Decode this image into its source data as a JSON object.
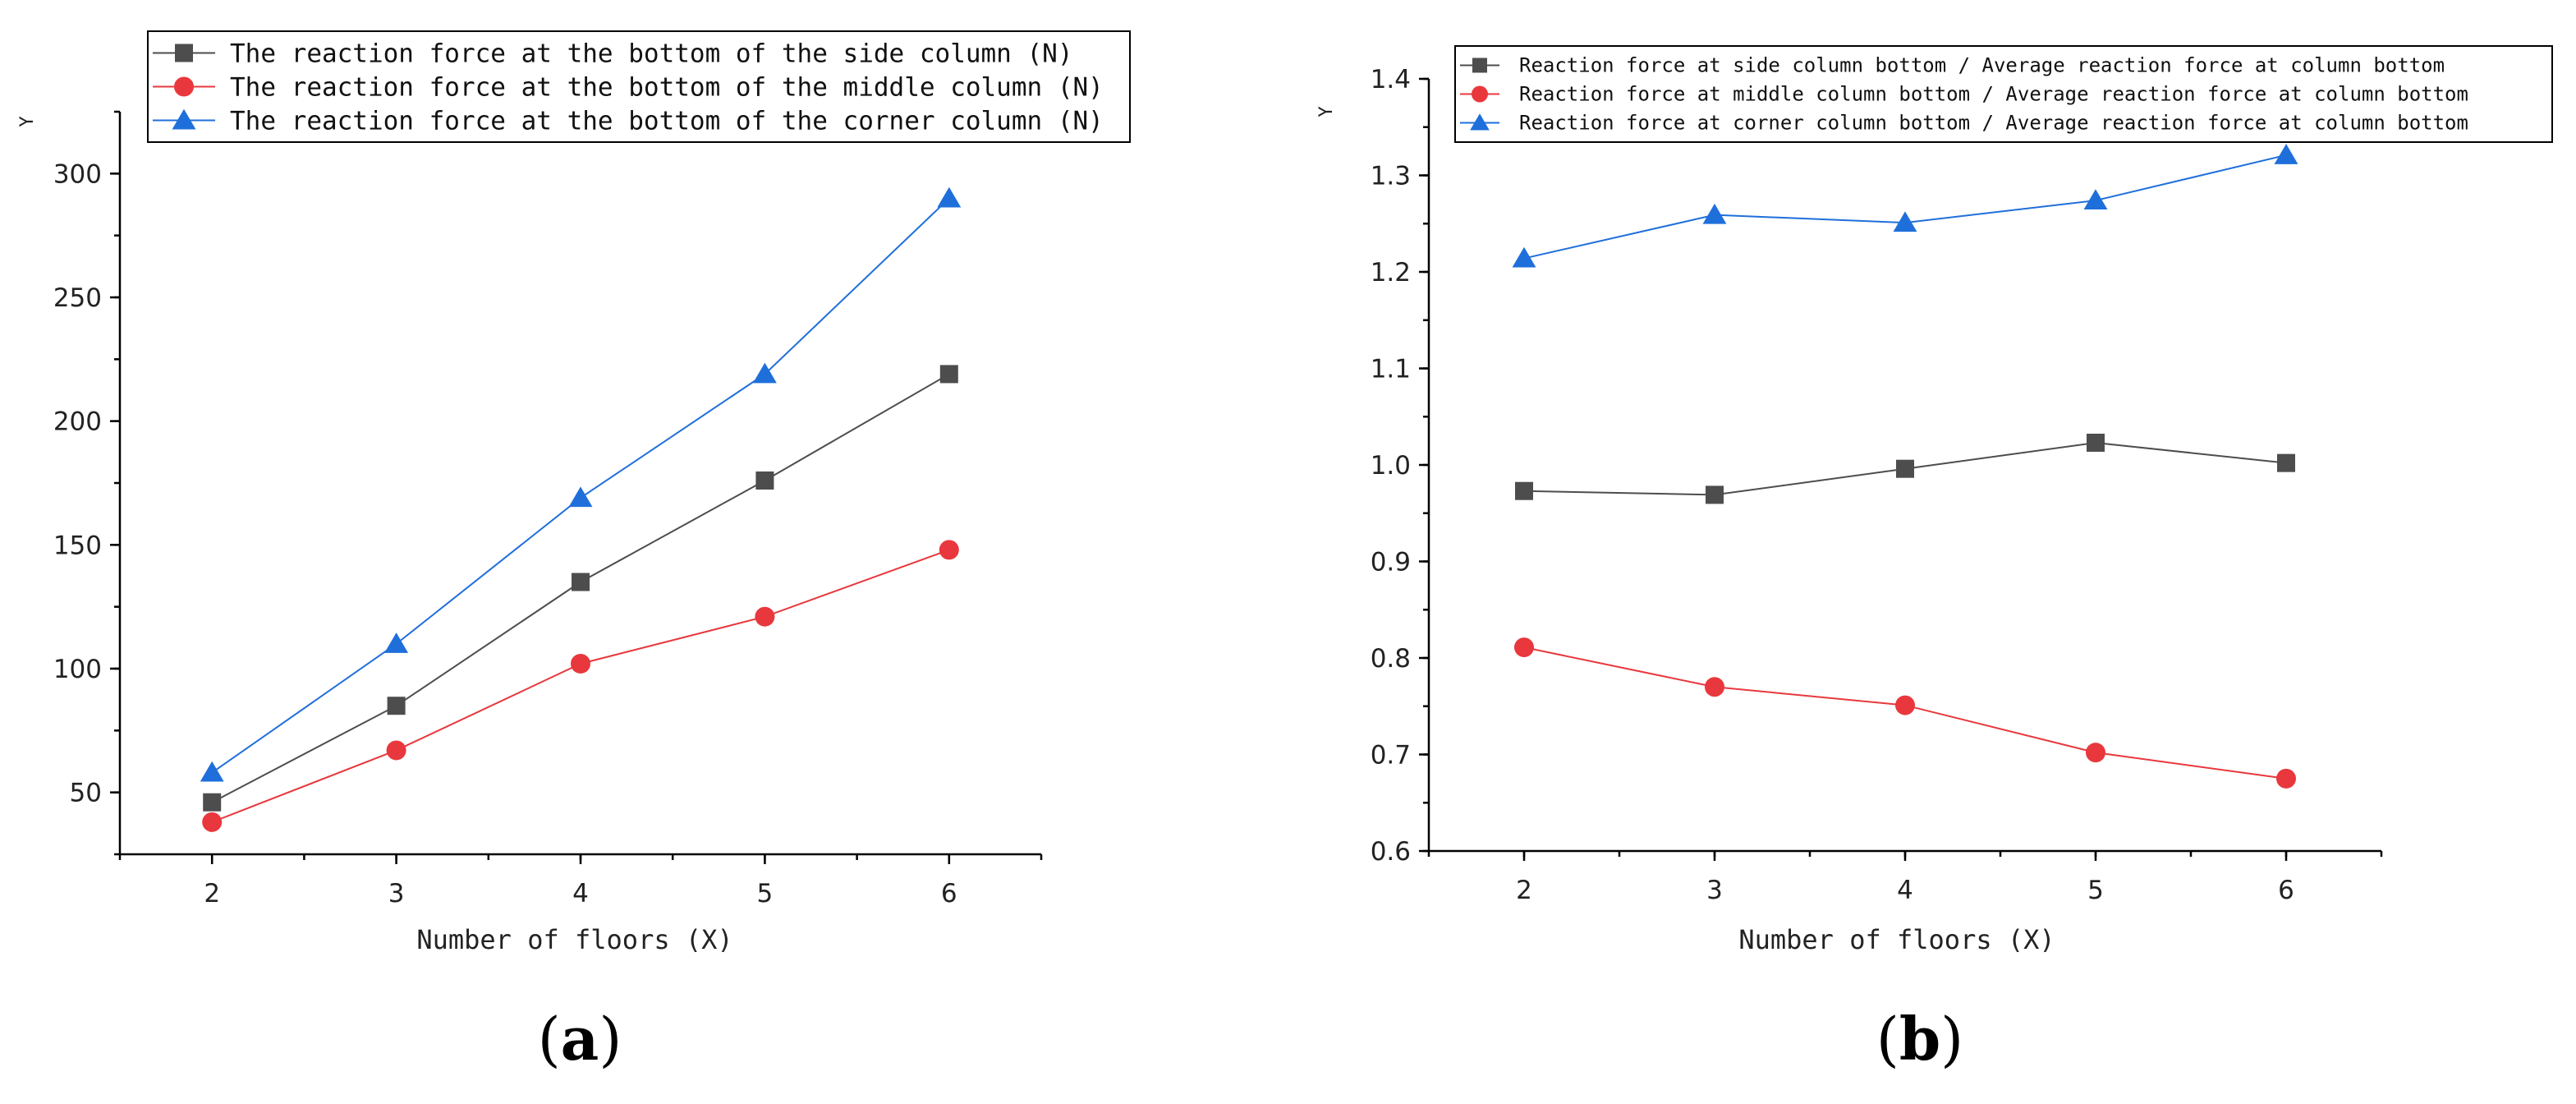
{
  "chart_data": [
    {
      "id": "a",
      "type": "line",
      "panel_label_pre": "(",
      "panel_label_letter": "a",
      "panel_label_post": ")",
      "title": "",
      "xlabel": "Number of floors (X)",
      "ylabel": "Y",
      "x": [
        2,
        3,
        4,
        5,
        6
      ],
      "xlim": [
        1.5,
        6.5
      ],
      "ylim": [
        25,
        325
      ],
      "yticks": [
        50,
        100,
        150,
        200,
        250,
        300
      ],
      "ytick_labels": [
        "50",
        "100",
        "150",
        "200",
        "250",
        "300"
      ],
      "xtick_labels": [
        "2",
        "3",
        "4",
        "5",
        "6"
      ],
      "grid": false,
      "legend_position": "top",
      "series": [
        {
          "name": "The reaction force at the bottom of the side column (N)",
          "marker": "square",
          "color": "#4d4d4d",
          "values": [
            46,
            85,
            135,
            176,
            219
          ]
        },
        {
          "name": "The reaction force at the bottom of the middle column (N)",
          "marker": "circle",
          "color": "#e8383d",
          "values": [
            38,
            67,
            102,
            121,
            148
          ]
        },
        {
          "name": "The reaction force at the bottom of the corner column (N)",
          "marker": "triangle",
          "color": "#1f6fdb",
          "values": [
            58,
            110,
            169,
            219,
            290
          ]
        }
      ]
    },
    {
      "id": "b",
      "type": "line",
      "panel_label_pre": "(",
      "panel_label_letter": "b",
      "panel_label_post": ")",
      "title": "",
      "xlabel": "Number of floors (X)",
      "ylabel": "Y",
      "x": [
        2,
        3,
        4,
        5,
        6
      ],
      "xlim": [
        1.5,
        6.5
      ],
      "ylim": [
        0.6,
        1.4
      ],
      "yticks": [
        0.6,
        0.7,
        0.8,
        0.9,
        1.0,
        1.1,
        1.2,
        1.3,
        1.4
      ],
      "ytick_labels": [
        "0.6",
        "0.7",
        "0.8",
        "0.9",
        "1.0",
        "1.1",
        "1.2",
        "1.3",
        "1.4"
      ],
      "xtick_labels": [
        "2",
        "3",
        "4",
        "5",
        "6"
      ],
      "grid": false,
      "legend_position": "top",
      "series": [
        {
          "name": "Reaction force at side column bottom / Average reaction force at column bottom",
          "marker": "square",
          "color": "#4d4d4d",
          "values": [
            0.973,
            0.969,
            0.996,
            1.023,
            1.002
          ]
        },
        {
          "name": "Reaction force at middle column bottom / Average reaction force at column bottom",
          "marker": "circle",
          "color": "#e8383d",
          "values": [
            0.811,
            0.77,
            0.751,
            0.702,
            0.675
          ]
        },
        {
          "name": "Reaction force at corner column bottom / Average reaction force at column bottom",
          "marker": "triangle",
          "color": "#1f6fdb",
          "values": [
            1.214,
            1.259,
            1.251,
            1.274,
            1.321
          ]
        }
      ]
    }
  ]
}
